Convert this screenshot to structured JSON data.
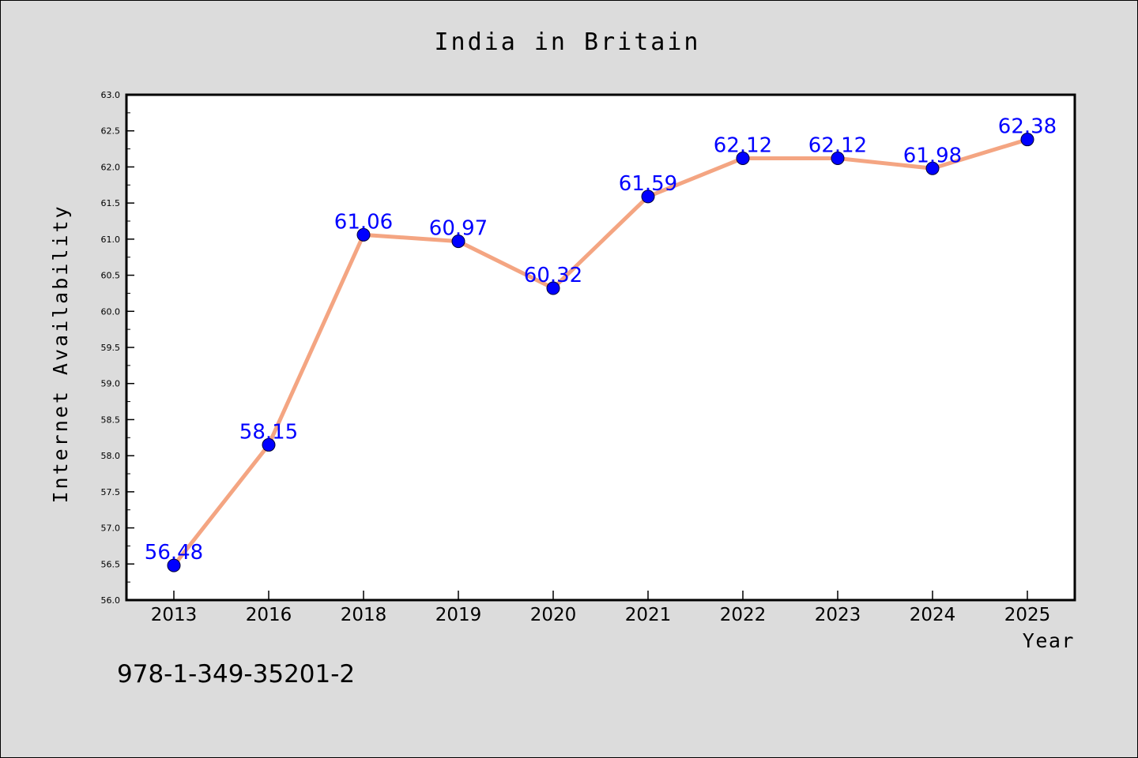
{
  "chart_data": {
    "type": "line",
    "title": "India in Britain",
    "xlabel": "Year",
    "ylabel": "Internet Availability",
    "categories": [
      "2013",
      "2016",
      "2018",
      "2019",
      "2020",
      "2021",
      "2022",
      "2023",
      "2024",
      "2025"
    ],
    "series": [
      {
        "values": [
          56.48,
          58.15,
          61.06,
          60.97,
          60.32,
          61.59,
          62.12,
          62.12,
          61.98,
          62.38
        ],
        "line_color": "#f4a582",
        "marker_color": "#0000ff",
        "label_color": "#0000ff"
      }
    ],
    "ylim": [
      56.0,
      63.0
    ],
    "yticks": [
      "56.0",
      "56.5",
      "57.0",
      "57.5",
      "58.0",
      "58.5",
      "59.0",
      "59.5",
      "60.0",
      "60.5",
      "61.0",
      "61.5",
      "62.0",
      "62.5",
      "63.0"
    ],
    "grid": false,
    "legend": "none",
    "annotation": "978-1-349-35201-2"
  }
}
